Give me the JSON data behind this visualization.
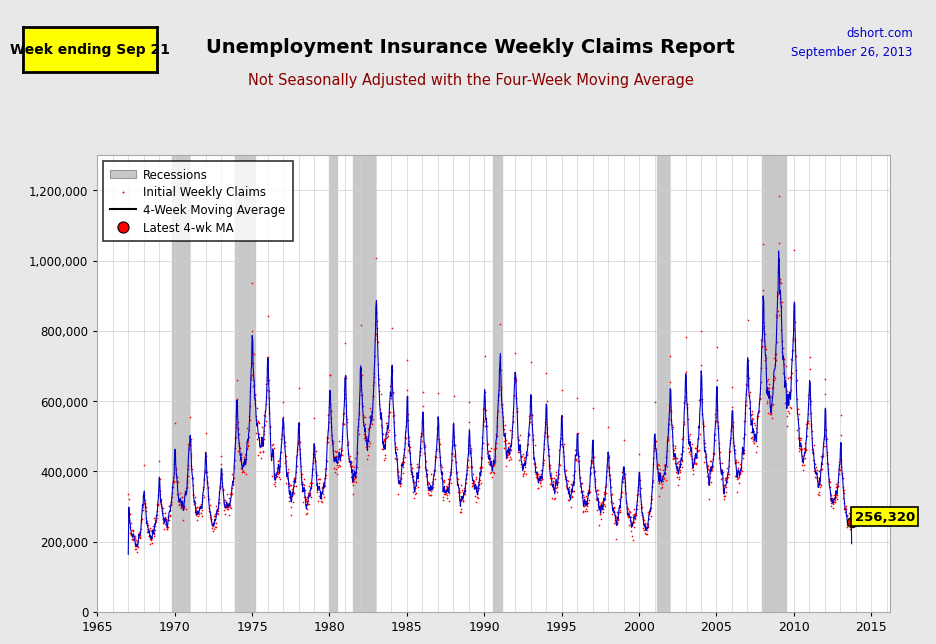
{
  "title": "Unemployment Insurance Weekly Claims Report",
  "subtitle": "Not Seasonally Adjusted with the Four-Week Moving Average",
  "top_left_label": "Week ending Sep 21",
  "top_right_line1": "dshort.com",
  "top_right_line2": "September 26, 2013",
  "latest_value": 256320,
  "latest_label": "256,320",
  "ylim": [
    0,
    1300000
  ],
  "xlim_start": 1965.3,
  "xlim_end": 2016.2,
  "yticks": [
    0,
    200000,
    400000,
    600000,
    800000,
    1000000,
    1200000
  ],
  "ytick_labels": [
    "0",
    "200,000",
    "400,000",
    "600,000",
    "800,000",
    "1,000,000",
    "1,200,000"
  ],
  "xticks": [
    1965,
    1970,
    1975,
    1980,
    1985,
    1990,
    1995,
    2000,
    2005,
    2010,
    2015
  ],
  "recession_bands": [
    [
      1969.83,
      1970.92
    ],
    [
      1973.92,
      1975.17
    ],
    [
      1980.0,
      1980.5
    ],
    [
      1981.5,
      1982.92
    ],
    [
      1990.58,
      1991.17
    ],
    [
      2001.17,
      2001.92
    ],
    [
      2007.92,
      2009.5
    ]
  ],
  "bg_color": "#ffffff",
  "plot_bg_color": "#ffffff",
  "outer_bg_color": "#e8e8e8",
  "recession_color": "#c8c8c8",
  "dot_color": "#ff0000",
  "line_color": "#0000cc",
  "ma_legend_color": "#000000",
  "latest_dot_color": "#ff0000",
  "latest_box_color": "#ffff00",
  "week_ending_bg": "#ffff00",
  "week_ending_border": "#000000",
  "week_ending_text": "#000000",
  "title_color": "#000000",
  "subtitle_color": "#8B0000",
  "dshort_color": "#0000cc",
  "grid_color": "#d0d0d0"
}
